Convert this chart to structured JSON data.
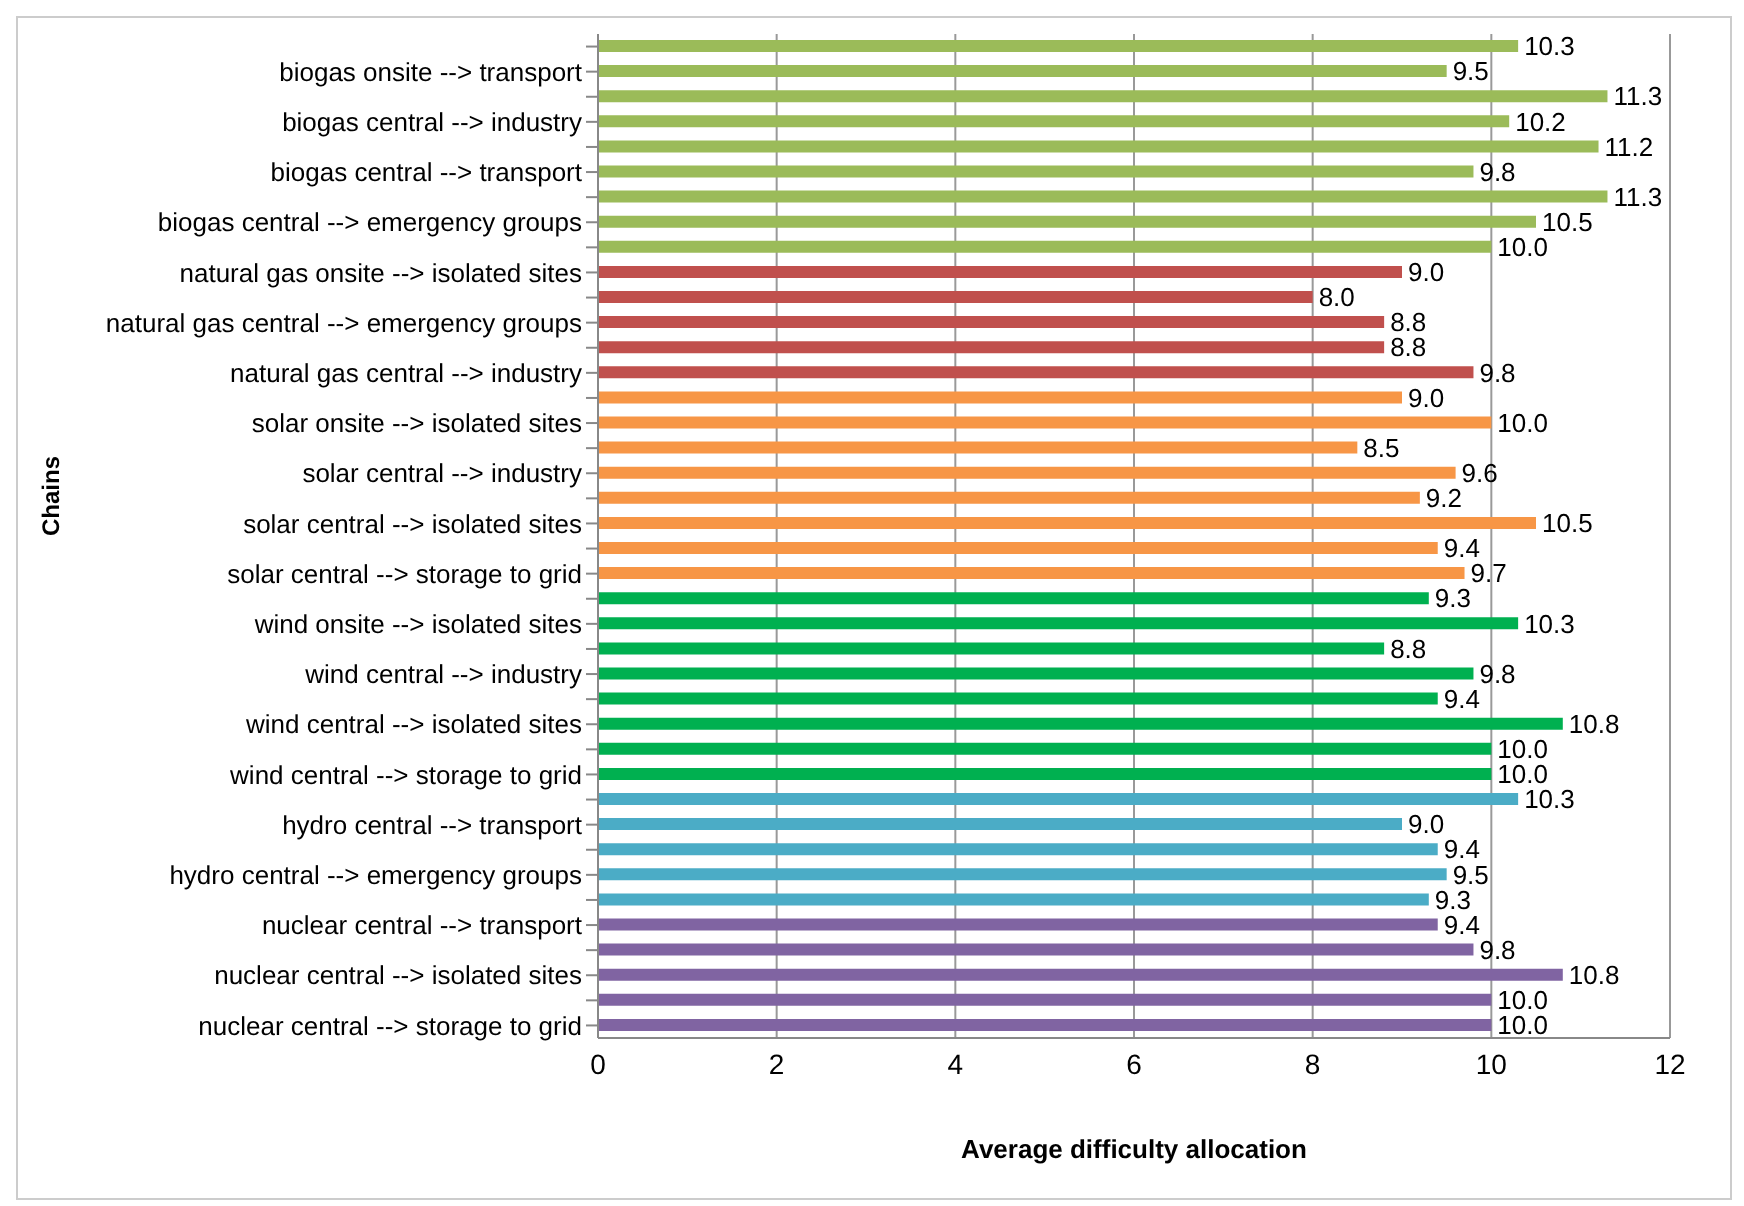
{
  "chart_data": {
    "type": "bar",
    "orientation": "horizontal",
    "xlabel": "Average difficulty allocation",
    "ylabel": "Chains",
    "categories": [
      null,
      "biogas onsite --> transport",
      null,
      "biogas central --> industry",
      null,
      "biogas central --> transport",
      null,
      "biogas central --> emergency groups",
      null,
      "natural gas onsite --> isolated sites",
      null,
      "natural gas central --> emergency groups",
      null,
      "natural gas central --> industry",
      null,
      "solar onsite --> isolated sites",
      null,
      "solar central --> industry",
      null,
      "solar central --> isolated sites",
      null,
      "solar central --> storage to grid",
      null,
      "wind onsite --> isolated sites",
      null,
      "wind central --> industry",
      null,
      "wind central --> isolated sites",
      null,
      "wind central --> storage to grid",
      null,
      "hydro central --> transport",
      null,
      "hydro central --> emergency groups",
      null,
      "nuclear central --> transport",
      null,
      "nuclear central --> isolated sites",
      null,
      "nuclear central --> storage to grid"
    ],
    "values": [
      10.3,
      9.5,
      11.3,
      10.2,
      11.2,
      9.8,
      11.3,
      10.5,
      10.0,
      9.0,
      8.0,
      8.8,
      8.8,
      9.8,
      9.0,
      10.0,
      8.5,
      9.6,
      9.2,
      10.5,
      9.4,
      9.7,
      9.3,
      10.3,
      8.8,
      9.8,
      9.4,
      10.8,
      10.0,
      10.0,
      10.3,
      9.0,
      9.4,
      9.5,
      9.3,
      9.4,
      9.8,
      10.8,
      10.0,
      10.0
    ],
    "colors": [
      "#9bbb59",
      "#9bbb59",
      "#9bbb59",
      "#9bbb59",
      "#9bbb59",
      "#9bbb59",
      "#9bbb59",
      "#9bbb59",
      "#9bbb59",
      "#c0504d",
      "#c0504d",
      "#c0504d",
      "#c0504d",
      "#c0504d",
      "#f79646",
      "#f79646",
      "#f79646",
      "#f79646",
      "#f79646",
      "#f79646",
      "#f79646",
      "#f79646",
      "#00b050",
      "#00b050",
      "#00b050",
      "#00b050",
      "#00b050",
      "#00b050",
      "#00b050",
      "#00b050",
      "#4bacc6",
      "#4bacc6",
      "#4bacc6",
      "#4bacc6",
      "#4bacc6",
      "#8064a2",
      "#8064a2",
      "#8064a2",
      "#8064a2",
      "#8064a2"
    ],
    "value_labels": [
      "10.3",
      "9.5",
      "11.3",
      "10.2",
      "11.2",
      "9.8",
      "11.3",
      "10.5",
      "10.0",
      "9.0",
      "8.0",
      "8.8",
      "8.8",
      "9.8",
      "9.0",
      "10.0",
      "8.5",
      "9.6",
      "9.2",
      "10.5",
      "9.4",
      "9.7",
      "9.3",
      "10.3",
      "8.8",
      "9.8",
      "9.4",
      "10.8",
      "10.0",
      "10.0",
      "10.3",
      "9.0",
      "9.4",
      "9.5",
      "9.3",
      "9.4",
      "9.8",
      "10.8",
      "10.0",
      "10.0"
    ],
    "xlim": [
      0,
      12
    ],
    "xticks": [
      0,
      2,
      4,
      6,
      8,
      10,
      12
    ],
    "grid": "x",
    "legend": false
  }
}
